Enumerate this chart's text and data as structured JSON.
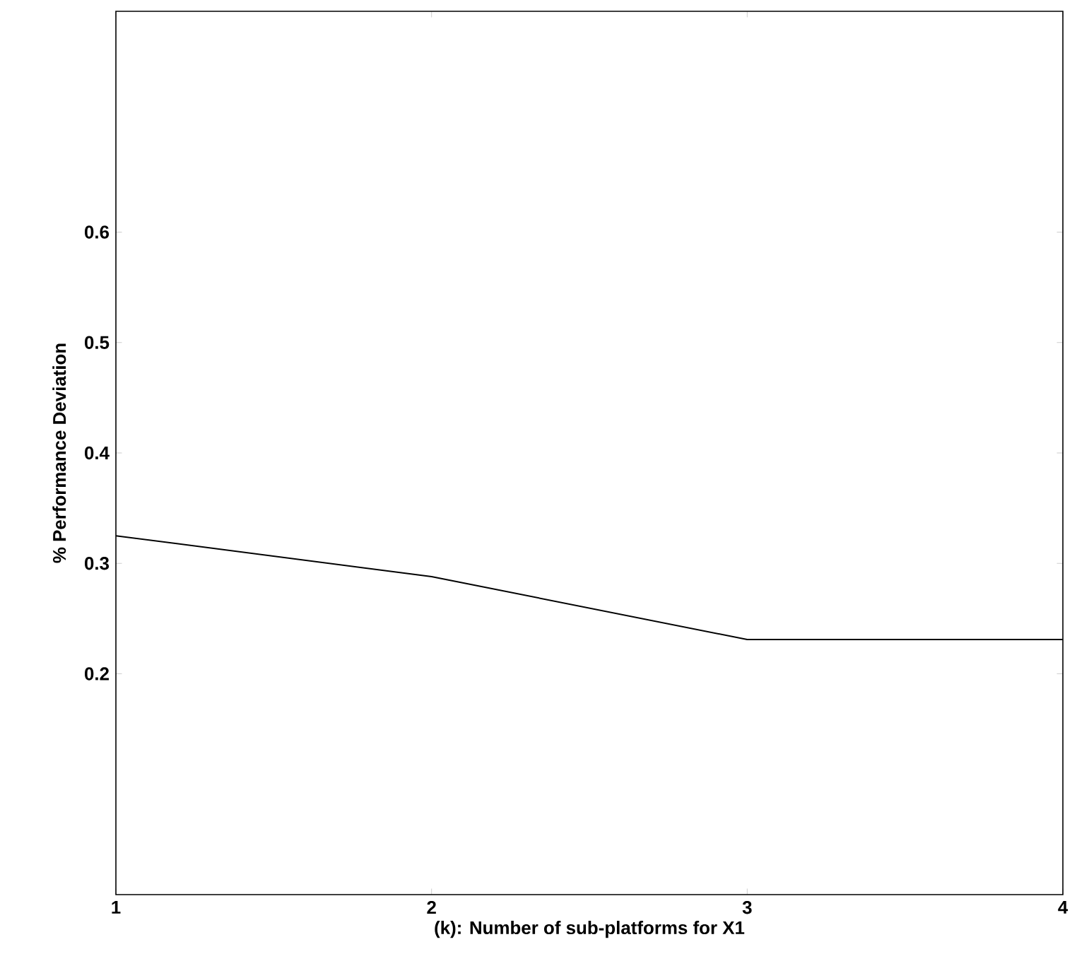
{
  "chart_data": {
    "type": "line",
    "xlabel": "(k): Number of sub-platforms for X1",
    "ylabel": "% Performance Deviation",
    "x": [
      1,
      2,
      3,
      4
    ],
    "series": [
      {
        "color": "#000000",
        "values": [
          0.325,
          0.288,
          0.231,
          0.231
        ]
      }
    ],
    "xlim": [
      1,
      4
    ],
    "xticks": [
      1,
      2,
      3,
      4
    ],
    "ylim": [
      0,
      0.8
    ],
    "yticks": [
      0.2,
      0.3,
      0.4,
      0.5,
      0.6
    ],
    "marker": "none",
    "line_style": "solid"
  }
}
